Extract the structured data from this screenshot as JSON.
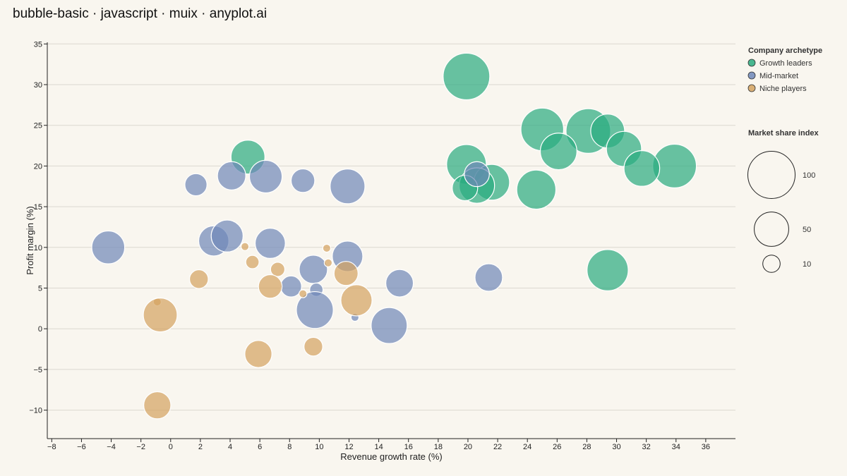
{
  "page_title": "bubble-basic · javascript · muix · anyplot.ai",
  "chart_data": {
    "type": "scatter",
    "subtype": "bubble",
    "xlabel": "Revenue growth rate (%)",
    "ylabel": "Profit margin (%)",
    "xlim": [
      -8.3,
      38
    ],
    "ylim": [
      -13.5,
      35.2
    ],
    "xticks": [
      -8,
      -6,
      -4,
      -2,
      0,
      2,
      4,
      6,
      8,
      10,
      12,
      14,
      16,
      18,
      20,
      22,
      24,
      26,
      28,
      30,
      32,
      34,
      36
    ],
    "yticks": [
      -10,
      -5,
      0,
      5,
      10,
      15,
      20,
      25,
      30,
      35
    ],
    "grid": "horizontal",
    "legend_title": "Company archetype",
    "size_legend_title": "Market share index",
    "size_legend_values": [
      100,
      50,
      10
    ],
    "legend_placement": "right",
    "series": [
      {
        "name": "Growth leaders",
        "color": "#2aab7f",
        "points": [
          {
            "x": 19.9,
            "y": 31.0,
            "size": 97
          },
          {
            "x": 25.0,
            "y": 24.5,
            "size": 80
          },
          {
            "x": 28.1,
            "y": 24.3,
            "size": 88
          },
          {
            "x": 29.4,
            "y": 24.3,
            "size": 48
          },
          {
            "x": 26.1,
            "y": 21.8,
            "size": 57
          },
          {
            "x": 30.5,
            "y": 22.1,
            "size": 52
          },
          {
            "x": 33.9,
            "y": 20.0,
            "size": 84
          },
          {
            "x": 31.7,
            "y": 19.7,
            "size": 54
          },
          {
            "x": 19.9,
            "y": 20.2,
            "size": 68
          },
          {
            "x": 21.6,
            "y": 18.0,
            "size": 54
          },
          {
            "x": 20.6,
            "y": 17.6,
            "size": 53
          },
          {
            "x": 19.8,
            "y": 17.3,
            "size": 25
          },
          {
            "x": 24.6,
            "y": 17.1,
            "size": 66
          },
          {
            "x": 5.2,
            "y": 21.1,
            "size": 48
          },
          {
            "x": 29.4,
            "y": 7.2,
            "size": 74
          }
        ]
      },
      {
        "name": "Mid-market",
        "color": "#6f87b8",
        "points": [
          {
            "x": 6.4,
            "y": 18.7,
            "size": 44
          },
          {
            "x": 4.1,
            "y": 18.8,
            "size": 32
          },
          {
            "x": 1.7,
            "y": 17.7,
            "size": 18
          },
          {
            "x": 8.9,
            "y": 18.2,
            "size": 21
          },
          {
            "x": 11.9,
            "y": 17.5,
            "size": 51
          },
          {
            "x": 20.6,
            "y": 19.0,
            "size": 24
          },
          {
            "x": -4.2,
            "y": 10.0,
            "size": 45
          },
          {
            "x": 2.9,
            "y": 10.8,
            "size": 37
          },
          {
            "x": 3.8,
            "y": 11.4,
            "size": 42
          },
          {
            "x": 6.7,
            "y": 10.5,
            "size": 37
          },
          {
            "x": 11.9,
            "y": 8.9,
            "size": 38
          },
          {
            "x": 9.6,
            "y": 7.3,
            "size": 32
          },
          {
            "x": 8.1,
            "y": 5.2,
            "size": 16
          },
          {
            "x": 9.8,
            "y": 4.8,
            "size": 5
          },
          {
            "x": 15.4,
            "y": 5.6,
            "size": 30
          },
          {
            "x": 21.4,
            "y": 6.3,
            "size": 30
          },
          {
            "x": 9.7,
            "y": 2.3,
            "size": 58
          },
          {
            "x": 14.7,
            "y": 0.4,
            "size": 55
          },
          {
            "x": 12.4,
            "y": 1.4,
            "size": 1
          }
        ]
      },
      {
        "name": "Niche players",
        "color": "#d4a25f",
        "points": [
          {
            "x": 5.0,
            "y": 10.1,
            "size": 1
          },
          {
            "x": 10.5,
            "y": 9.9,
            "size": 1
          },
          {
            "x": 5.5,
            "y": 8.2,
            "size": 5
          },
          {
            "x": 10.6,
            "y": 8.1,
            "size": 1
          },
          {
            "x": 7.2,
            "y": 7.3,
            "size": 6
          },
          {
            "x": 11.8,
            "y": 6.8,
            "size": 22
          },
          {
            "x": 1.9,
            "y": 6.1,
            "size": 12
          },
          {
            "x": 6.7,
            "y": 5.2,
            "size": 21
          },
          {
            "x": 8.9,
            "y": 4.3,
            "size": 1
          },
          {
            "x": 12.5,
            "y": 3.5,
            "size": 40
          },
          {
            "x": -0.9,
            "y": 3.3,
            "size": 1
          },
          {
            "x": -0.7,
            "y": 1.7,
            "size": 48
          },
          {
            "x": 9.6,
            "y": -2.2,
            "size": 12
          },
          {
            "x": 5.9,
            "y": -3.1,
            "size": 29
          },
          {
            "x": -0.9,
            "y": -9.4,
            "size": 29
          }
        ]
      }
    ]
  }
}
